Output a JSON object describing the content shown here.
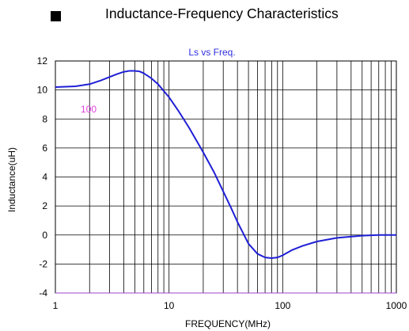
{
  "page": {
    "heading": "Inductance-Frequency Characteristics"
  },
  "chart_data": {
    "type": "line",
    "title": "Ls vs Freq.",
    "xlabel": "FREQUENCY(MHz)",
    "ylabel": "Inductance(uH)",
    "x_scale": "log",
    "xlim": [
      1,
      1000
    ],
    "ylim": [
      -4,
      12
    ],
    "x_ticks": [
      "1",
      "10",
      "100",
      "1000"
    ],
    "y_ticks": [
      "12",
      "10",
      "8",
      "6",
      "4",
      "2",
      "0",
      "-2",
      "-4"
    ],
    "grid": true,
    "annotation": "100",
    "colors": {
      "line": "#1f1fd6",
      "title": "#2f2fe0",
      "annotation": "#e040e0",
      "baseline": "#a040d0",
      "grid": "#000000"
    },
    "series": [
      {
        "x": [
          1,
          1.5,
          2,
          2.5,
          3,
          3.5,
          4,
          4.5,
          5,
          5.5,
          6,
          7,
          8,
          10,
          12,
          15,
          20,
          25,
          30,
          35,
          40,
          50,
          60,
          70,
          80,
          90,
          100,
          120,
          150,
          200,
          300,
          500,
          700,
          1000
        ],
        "y": [
          10.2,
          10.25,
          10.4,
          10.65,
          10.9,
          11.1,
          11.25,
          11.32,
          11.32,
          11.28,
          11.15,
          10.8,
          10.4,
          9.5,
          8.6,
          7.4,
          5.7,
          4.3,
          3.0,
          1.9,
          0.9,
          -0.6,
          -1.3,
          -1.55,
          -1.6,
          -1.55,
          -1.4,
          -1.05,
          -0.75,
          -0.45,
          -0.2,
          -0.05,
          0.0,
          0.0
        ]
      }
    ]
  }
}
